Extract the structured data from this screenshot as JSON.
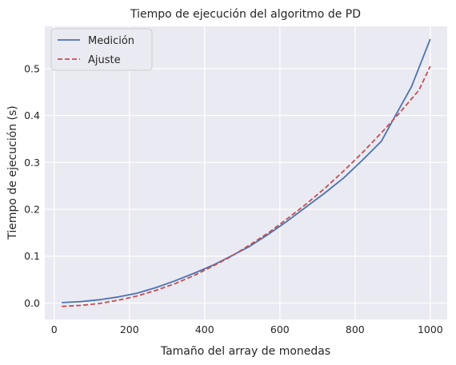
{
  "chart_data": {
    "type": "line",
    "title": "Tiempo de ejecución del algoritmo de PD",
    "xlabel": "Tamaño del array de monedas",
    "ylabel": "Tiempo de ejecución (s)",
    "xlim": [
      -25,
      1045
    ],
    "ylim": [
      -0.035,
      0.59
    ],
    "xticks": [
      0,
      200,
      400,
      600,
      800,
      1000
    ],
    "xtick_labels": [
      "0",
      "200",
      "400",
      "600",
      "800",
      "1000"
    ],
    "yticks": [
      0.0,
      0.1,
      0.2,
      0.3,
      0.4,
      0.5
    ],
    "ytick_labels": [
      "0.0",
      "0.1",
      "0.2",
      "0.3",
      "0.4",
      "0.5"
    ],
    "grid": true,
    "legend": "top-left",
    "series": [
      {
        "name": "Medición",
        "color": "#4c72b0",
        "style": "solid",
        "x": [
          20,
          70,
          120,
          170,
          220,
          270,
          320,
          370,
          420,
          470,
          520,
          570,
          620,
          670,
          720,
          770,
          820,
          870,
          900,
          950,
          1000
        ],
        "y": [
          0.001,
          0.003,
          0.007,
          0.013,
          0.021,
          0.033,
          0.047,
          0.063,
          0.08,
          0.1,
          0.121,
          0.147,
          0.175,
          0.205,
          0.235,
          0.267,
          0.305,
          0.345,
          0.389,
          0.461,
          0.563
        ]
      },
      {
        "name": "Ajuste",
        "color": "#c44e52",
        "style": "dashed",
        "x": [
          20,
          70,
          120,
          170,
          220,
          270,
          320,
          370,
          420,
          470,
          520,
          570,
          620,
          670,
          720,
          770,
          820,
          870,
          920,
          970,
          1000
        ],
        "y": [
          -0.007,
          -0.005,
          -0.001,
          0.006,
          0.015,
          0.027,
          0.041,
          0.058,
          0.078,
          0.099,
          0.124,
          0.15,
          0.18,
          0.211,
          0.245,
          0.282,
          0.321,
          0.363,
          0.407,
          0.454,
          0.505
        ]
      }
    ]
  }
}
